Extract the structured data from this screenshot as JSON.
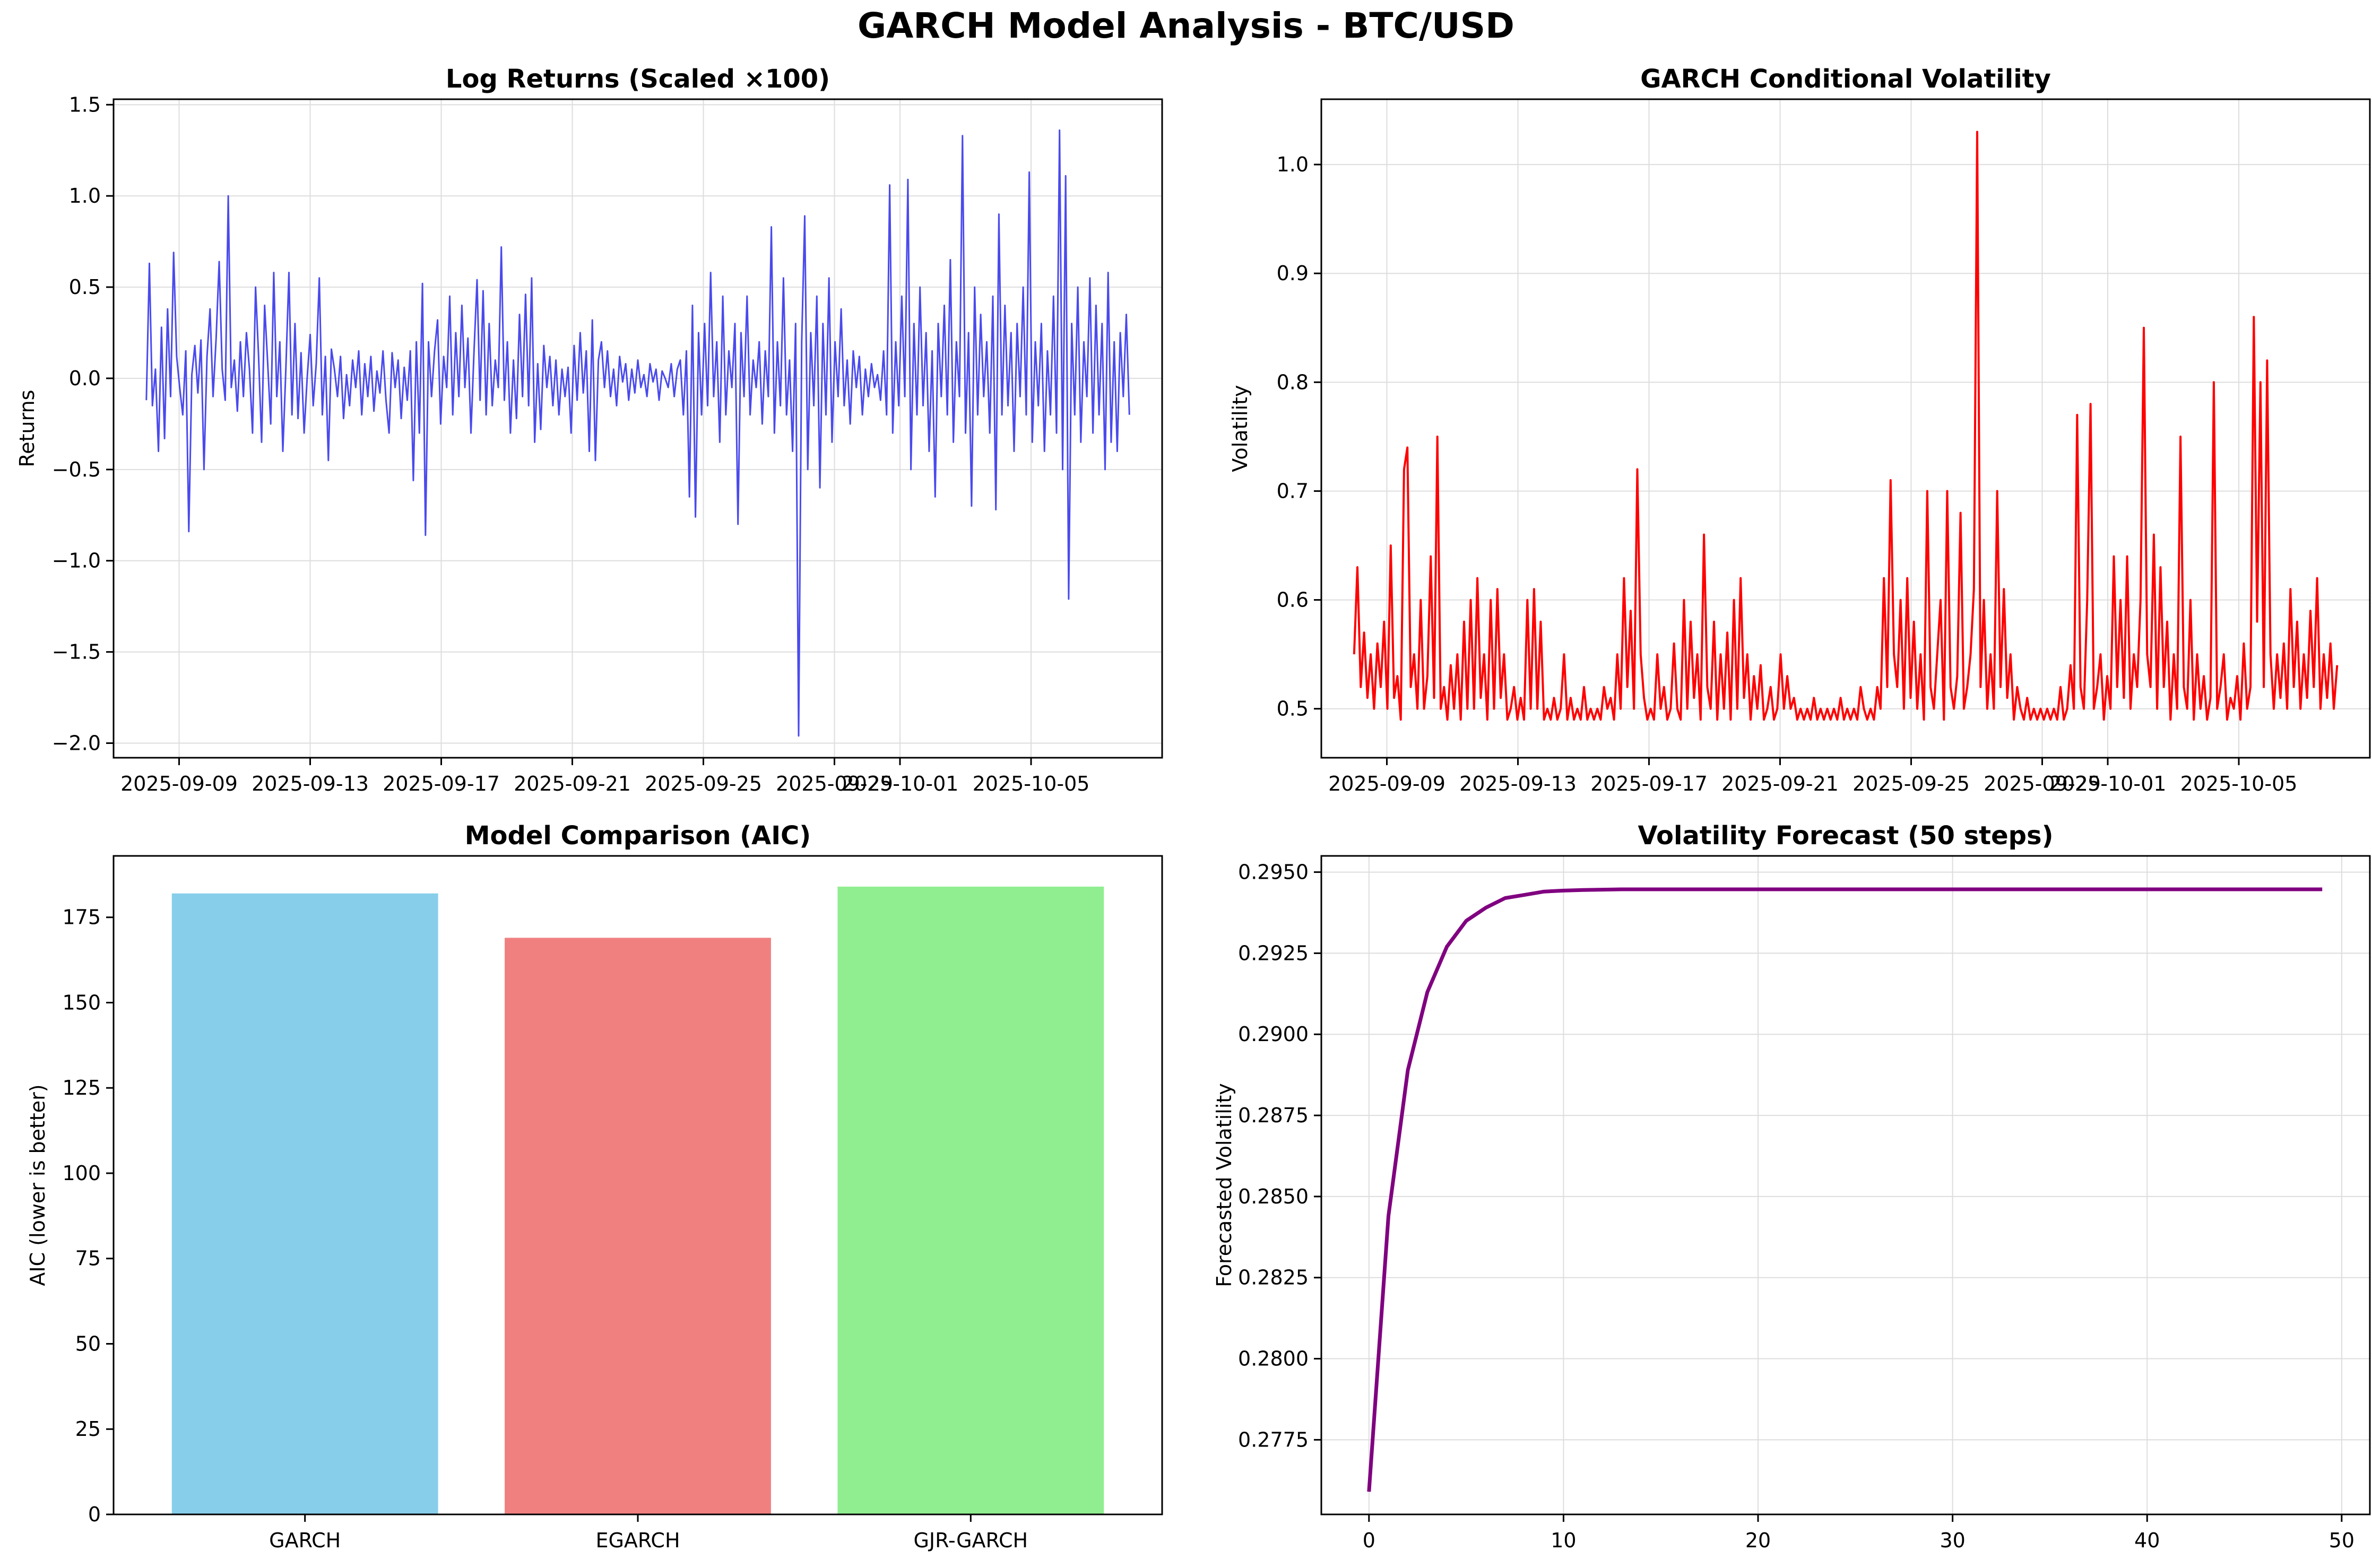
{
  "title": "GARCH Model Analysis - BTC/USD",
  "colors": {
    "returns": "#4a4aee",
    "volatility": "#ff0000",
    "forecast": "#800080",
    "grid": "#dddddd"
  },
  "chart_data": [
    {
      "id": "returns",
      "type": "line",
      "title": "Log Returns (Scaled ×100)",
      "xlabel": "",
      "ylabel": "Returns",
      "x_start": "2025-09-08",
      "x_end": "2025-10-08",
      "xlim": [
        "2025-09-07",
        "2025-10-09"
      ],
      "ylim": [
        -2.08,
        1.53
      ],
      "xticks": [
        "2025-09-09",
        "2025-09-13",
        "2025-09-17",
        "2025-09-21",
        "2025-09-25",
        "2025-09-29",
        "2025-10-01",
        "2025-10-05"
      ],
      "yticks": [
        -2.0,
        -1.5,
        -1.0,
        -0.5,
        0.0,
        0.5,
        1.0,
        1.5
      ],
      "ytick_labels": [
        "−2.0",
        "−1.5",
        "−1.0",
        "−0.5",
        "0.0",
        "0.5",
        "1.0",
        "1.5"
      ],
      "grid": true,
      "values": [
        -0.12,
        0.63,
        -0.15,
        0.05,
        -0.4,
        0.28,
        -0.33,
        0.38,
        -0.1,
        0.69,
        0.12,
        -0.05,
        -0.2,
        0.15,
        -0.84,
        0.02,
        0.18,
        -0.08,
        0.21,
        -0.5,
        0.12,
        0.38,
        -0.1,
        0.22,
        0.64,
        0.05,
        -0.12,
        1.0,
        -0.05,
        0.1,
        -0.18,
        0.2,
        -0.1,
        0.25,
        0.05,
        -0.3,
        0.5,
        0.12,
        -0.35,
        0.4,
        0.08,
        -0.25,
        0.58,
        -0.1,
        0.2,
        -0.4,
        0.06,
        0.58,
        -0.2,
        0.3,
        -0.22,
        0.14,
        -0.3,
        0.0,
        0.24,
        -0.15,
        0.08,
        0.55,
        -0.2,
        0.12,
        -0.45,
        0.16,
        0.05,
        -0.1,
        0.12,
        -0.22,
        0.02,
        -0.15,
        0.1,
        -0.05,
        0.15,
        -0.2,
        0.08,
        -0.1,
        0.12,
        -0.18,
        0.04,
        -0.08,
        0.15,
        -0.12,
        -0.3,
        0.14,
        -0.05,
        0.1,
        -0.22,
        0.06,
        -0.12,
        0.15,
        -0.56,
        0.2,
        -0.3,
        0.52,
        -0.86,
        0.2,
        -0.1,
        0.15,
        0.32,
        -0.25,
        0.12,
        -0.05,
        0.45,
        -0.2,
        0.25,
        -0.1,
        0.4,
        -0.05,
        0.22,
        -0.3,
        0.15,
        0.54,
        -0.12,
        0.48,
        -0.2,
        0.3,
        -0.15,
        0.1,
        -0.05,
        0.72,
        -0.12,
        0.2,
        -0.3,
        0.1,
        -0.22,
        0.35,
        -0.1,
        0.46,
        -0.15,
        0.55,
        -0.35,
        0.08,
        -0.28,
        0.18,
        -0.05,
        0.12,
        -0.15,
        0.1,
        -0.2,
        0.05,
        -0.1,
        0.06,
        -0.3,
        0.18,
        -0.12,
        0.25,
        -0.08,
        0.15,
        -0.4,
        0.32,
        -0.45,
        0.1,
        0.2,
        -0.05,
        0.15,
        -0.1,
        0.05,
        -0.15,
        0.12,
        -0.02,
        0.08,
        -0.12,
        0.05,
        -0.08,
        0.1,
        -0.05,
        0.02,
        -0.1,
        0.08,
        -0.02,
        0.05,
        -0.12,
        0.04,
        0.0,
        -0.05,
        0.08,
        -0.1,
        0.05,
        0.1,
        -0.2,
        0.15,
        -0.65,
        0.4,
        -0.76,
        0.25,
        -0.2,
        0.3,
        -0.15,
        0.58,
        -0.1,
        0.2,
        -0.35,
        0.45,
        -0.2,
        0.15,
        -0.05,
        0.3,
        -0.8,
        0.25,
        -0.1,
        0.45,
        -0.2,
        0.1,
        -0.05,
        0.2,
        -0.25,
        0.15,
        -0.1,
        0.83,
        -0.3,
        0.2,
        -0.15,
        0.55,
        -0.2,
        0.1,
        -0.4,
        0.3,
        -1.96,
        0.2,
        0.89,
        -0.5,
        0.25,
        -0.15,
        0.45,
        -0.6,
        0.3,
        -0.2,
        0.55,
        -0.35,
        0.2,
        -0.1,
        0.38,
        -0.15,
        0.1,
        -0.25,
        0.15,
        -0.05,
        0.12,
        -0.2,
        0.05,
        -0.1,
        0.08,
        -0.05,
        0.02,
        -0.12,
        0.15,
        -0.2,
        1.06,
        -0.3,
        0.2,
        -0.15,
        0.45,
        -0.1,
        1.09,
        -0.5,
        0.3,
        -0.2,
        0.5,
        -0.15,
        0.25,
        -0.4,
        0.15,
        -0.65,
        0.3,
        -0.1,
        0.4,
        -0.2,
        0.65,
        -0.35,
        0.2,
        -0.1,
        1.33,
        -0.3,
        0.25,
        -0.7,
        0.5,
        -0.2,
        0.35,
        -0.1,
        0.2,
        -0.3,
        0.45,
        -0.72,
        0.9,
        -0.2,
        0.4,
        -0.15,
        0.25,
        -0.4,
        0.3,
        -0.1,
        0.5,
        -0.2,
        1.13,
        -0.35,
        0.2,
        -0.15,
        0.3,
        -0.4,
        0.15,
        -0.2,
        0.45,
        -0.3,
        1.36,
        -0.5,
        1.11,
        -1.21,
        0.3,
        -0.2,
        0.5,
        -0.35,
        0.2,
        -0.1,
        0.55,
        -0.3,
        0.4,
        -0.2,
        0.3,
        -0.5,
        0.58,
        -0.35,
        0.2,
        -0.4,
        0.25,
        -0.1,
        0.35,
        -0.2
      ]
    },
    {
      "id": "volatility",
      "type": "line",
      "title": "GARCH Conditional Volatility",
      "xlabel": "",
      "ylabel": "Volatility",
      "x_start": "2025-09-08",
      "x_end": "2025-10-08",
      "xlim": [
        "2025-09-07",
        "2025-10-09"
      ],
      "ylim": [
        0.455,
        1.06
      ],
      "xticks": [
        "2025-09-09",
        "2025-09-13",
        "2025-09-17",
        "2025-09-21",
        "2025-09-25",
        "2025-09-29",
        "2025-10-01",
        "2025-10-05"
      ],
      "yticks": [
        0.5,
        0.6,
        0.7,
        0.8,
        0.9,
        1.0
      ],
      "ytick_labels": [
        "0.5",
        "0.6",
        "0.7",
        "0.8",
        "0.9",
        "1.0"
      ],
      "grid": true,
      "values": [
        0.55,
        0.63,
        0.52,
        0.57,
        0.51,
        0.55,
        0.5,
        0.56,
        0.52,
        0.58,
        0.5,
        0.65,
        0.51,
        0.53,
        0.49,
        0.72,
        0.74,
        0.52,
        0.55,
        0.5,
        0.6,
        0.5,
        0.53,
        0.64,
        0.51,
        0.75,
        0.5,
        0.52,
        0.49,
        0.54,
        0.5,
        0.55,
        0.49,
        0.58,
        0.5,
        0.6,
        0.5,
        0.62,
        0.51,
        0.55,
        0.49,
        0.6,
        0.5,
        0.61,
        0.51,
        0.55,
        0.49,
        0.5,
        0.52,
        0.49,
        0.51,
        0.49,
        0.6,
        0.5,
        0.61,
        0.5,
        0.58,
        0.49,
        0.5,
        0.49,
        0.51,
        0.49,
        0.5,
        0.55,
        0.49,
        0.51,
        0.49,
        0.5,
        0.49,
        0.52,
        0.49,
        0.5,
        0.49,
        0.5,
        0.49,
        0.52,
        0.5,
        0.51,
        0.49,
        0.55,
        0.5,
        0.62,
        0.52,
        0.59,
        0.5,
        0.72,
        0.55,
        0.51,
        0.49,
        0.5,
        0.49,
        0.55,
        0.5,
        0.52,
        0.49,
        0.5,
        0.56,
        0.5,
        0.49,
        0.6,
        0.5,
        0.58,
        0.51,
        0.55,
        0.49,
        0.66,
        0.52,
        0.5,
        0.58,
        0.49,
        0.55,
        0.5,
        0.57,
        0.49,
        0.6,
        0.5,
        0.62,
        0.51,
        0.55,
        0.49,
        0.53,
        0.5,
        0.54,
        0.49,
        0.5,
        0.52,
        0.49,
        0.5,
        0.55,
        0.5,
        0.53,
        0.5,
        0.51,
        0.49,
        0.5,
        0.49,
        0.5,
        0.49,
        0.51,
        0.49,
        0.5,
        0.49,
        0.5,
        0.49,
        0.5,
        0.49,
        0.51,
        0.49,
        0.5,
        0.49,
        0.5,
        0.49,
        0.52,
        0.5,
        0.49,
        0.5,
        0.49,
        0.52,
        0.5,
        0.62,
        0.52,
        0.71,
        0.55,
        0.52,
        0.6,
        0.5,
        0.62,
        0.51,
        0.58,
        0.5,
        0.55,
        0.49,
        0.7,
        0.52,
        0.5,
        0.55,
        0.6,
        0.49,
        0.7,
        0.52,
        0.5,
        0.53,
        0.68,
        0.5,
        0.52,
        0.55,
        0.61,
        1.03,
        0.52,
        0.6,
        0.5,
        0.55,
        0.5,
        0.7,
        0.52,
        0.61,
        0.51,
        0.55,
        0.49,
        0.52,
        0.5,
        0.49,
        0.51,
        0.49,
        0.5,
        0.49,
        0.5,
        0.49,
        0.5,
        0.49,
        0.5,
        0.49,
        0.52,
        0.49,
        0.5,
        0.54,
        0.5,
        0.77,
        0.52,
        0.5,
        0.6,
        0.78,
        0.5,
        0.52,
        0.55,
        0.49,
        0.53,
        0.5,
        0.64,
        0.52,
        0.6,
        0.51,
        0.64,
        0.5,
        0.55,
        0.52,
        0.6,
        0.85,
        0.55,
        0.52,
        0.66,
        0.5,
        0.63,
        0.52,
        0.58,
        0.49,
        0.55,
        0.5,
        0.75,
        0.52,
        0.5,
        0.6,
        0.49,
        0.55,
        0.5,
        0.53,
        0.49,
        0.51,
        0.8,
        0.5,
        0.52,
        0.55,
        0.49,
        0.51,
        0.5,
        0.53,
        0.49,
        0.56,
        0.5,
        0.52,
        0.86,
        0.58,
        0.8,
        0.52,
        0.82,
        0.55,
        0.5,
        0.55,
        0.51,
        0.56,
        0.5,
        0.61,
        0.52,
        0.58,
        0.5,
        0.55,
        0.51,
        0.59,
        0.52,
        0.62,
        0.5,
        0.55,
        0.51,
        0.56,
        0.5,
        0.54
      ]
    },
    {
      "id": "aic",
      "type": "bar",
      "title": "Model Comparison (AIC)",
      "xlabel": "",
      "ylabel": "AIC (lower is better)",
      "categories": [
        "GARCH",
        "EGARCH",
        "GJR-GARCH"
      ],
      "values": [
        182,
        169,
        184
      ],
      "bar_colors": [
        "#87ceeb",
        "#f08080",
        "#90ee90"
      ],
      "ylim": [
        0,
        193
      ],
      "yticks": [
        0,
        25,
        50,
        75,
        100,
        125,
        150,
        175
      ],
      "ytick_labels": [
        "0",
        "25",
        "50",
        "75",
        "100",
        "125",
        "150",
        "175"
      ],
      "grid": false
    },
    {
      "id": "forecast",
      "type": "line",
      "title": "Volatility Forecast (50 steps)",
      "xlabel": "",
      "ylabel": "Forecasted Volatility",
      "xlim": [
        -2.45,
        51.45
      ],
      "ylim": [
        0.2752,
        0.2955
      ],
      "xticks": [
        0,
        10,
        20,
        30,
        40,
        50
      ],
      "xtick_labels": [
        "0",
        "10",
        "20",
        "30",
        "40",
        "50"
      ],
      "yticks": [
        0.2775,
        0.28,
        0.2825,
        0.285,
        0.2875,
        0.29,
        0.2925,
        0.295
      ],
      "ytick_labels": [
        "0.2775",
        "0.2800",
        "0.2825",
        "0.2850",
        "0.2875",
        "0.2900",
        "0.2925",
        "0.2950"
      ],
      "grid": true,
      "x": [
        0,
        1,
        2,
        3,
        4,
        5,
        6,
        7,
        8,
        9,
        10,
        11,
        12,
        13,
        14,
        15,
        16,
        17,
        18,
        19,
        20,
        21,
        22,
        23,
        24,
        25,
        26,
        27,
        28,
        29,
        30,
        31,
        32,
        33,
        34,
        35,
        36,
        37,
        38,
        39,
        40,
        41,
        42,
        43,
        44,
        45,
        46,
        47,
        48,
        49
      ],
      "values": [
        0.2759,
        0.2844,
        0.2889,
        0.2913,
        0.2927,
        0.2935,
        0.2939,
        0.2942,
        0.2943,
        0.2944,
        0.29443,
        0.29445,
        0.29446,
        0.29447,
        0.29447,
        0.29447,
        0.29447,
        0.29447,
        0.29447,
        0.29447,
        0.29447,
        0.29447,
        0.29447,
        0.29447,
        0.29447,
        0.29447,
        0.29447,
        0.29447,
        0.29447,
        0.29447,
        0.29447,
        0.29447,
        0.29447,
        0.29447,
        0.29447,
        0.29447,
        0.29447,
        0.29447,
        0.29447,
        0.29447,
        0.29447,
        0.29447,
        0.29447,
        0.29447,
        0.29447,
        0.29447,
        0.29447,
        0.29447,
        0.29447,
        0.29447
      ]
    }
  ]
}
